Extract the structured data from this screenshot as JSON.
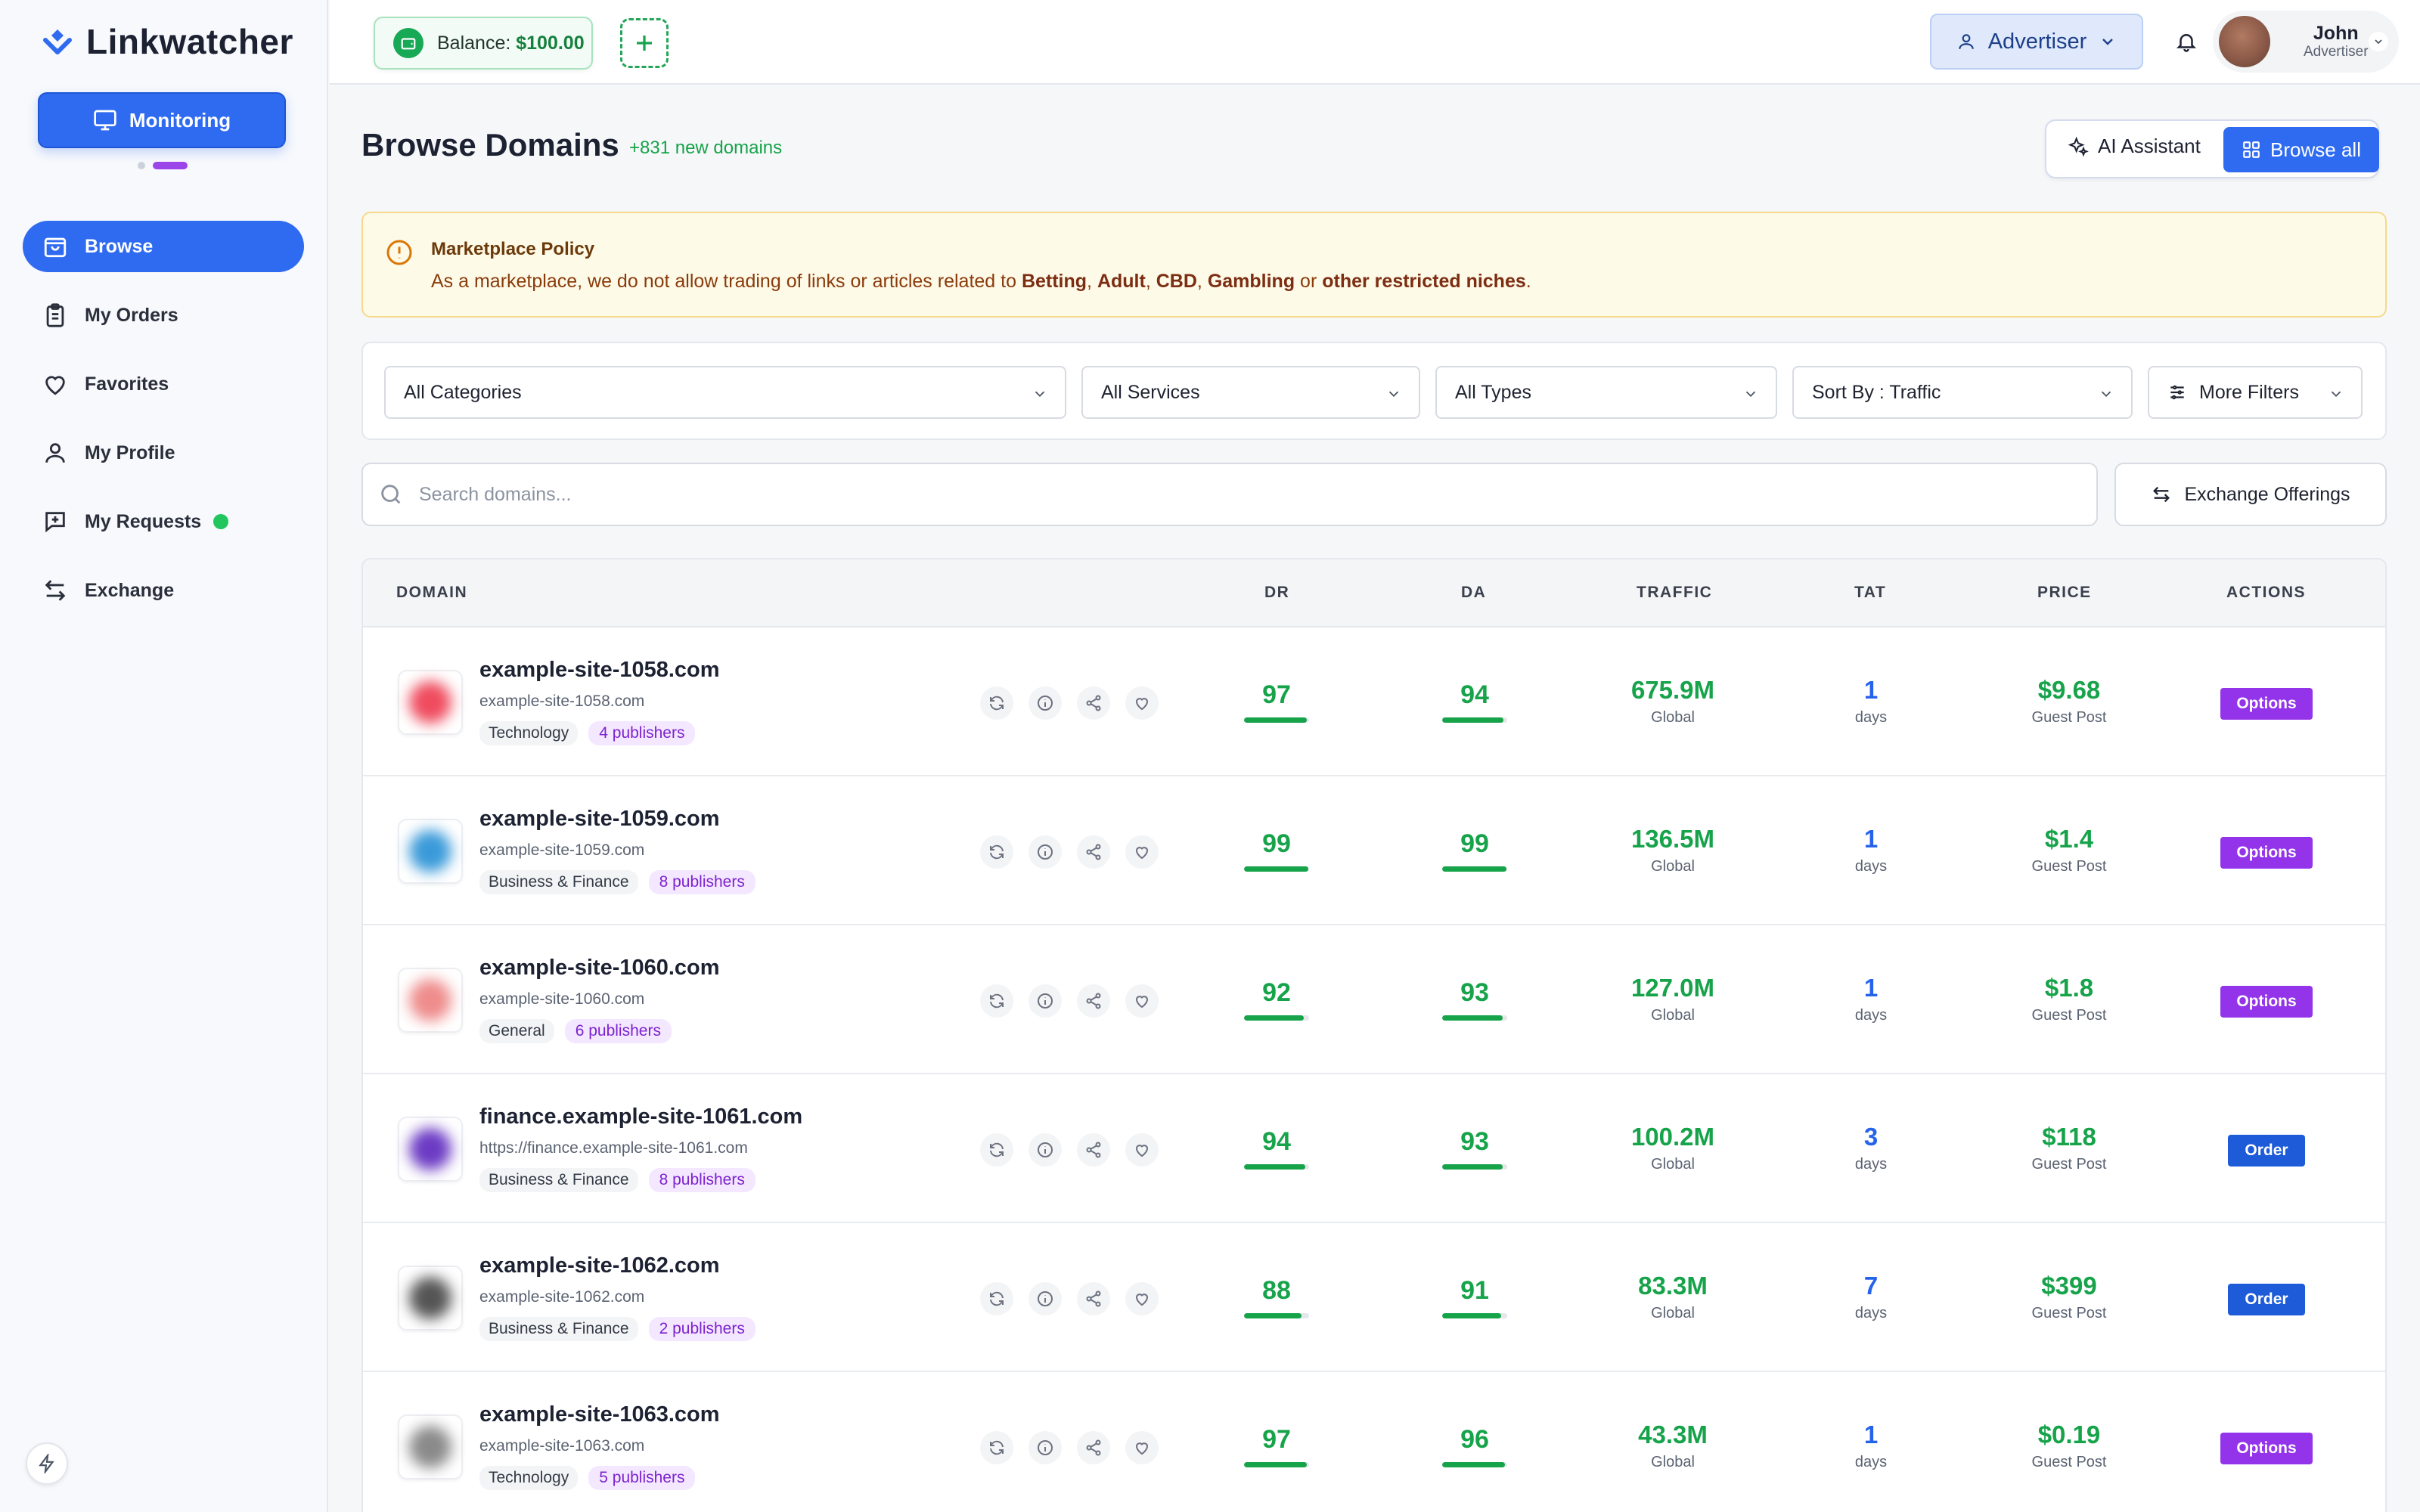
{
  "app": {
    "name": "Linkwatcher",
    "monitor_label": "Monitoring"
  },
  "sidebar": {
    "items": [
      {
        "label": "Browse",
        "icon": "bag-icon",
        "active": true
      },
      {
        "label": "My Orders",
        "icon": "clipboard-icon"
      },
      {
        "label": "Favorites",
        "icon": "heart-icon"
      },
      {
        "label": "My Profile",
        "icon": "user-icon"
      },
      {
        "label": "My Requests",
        "icon": "message-plus-icon",
        "indicator": true
      },
      {
        "label": "Exchange",
        "icon": "arrows-icon"
      }
    ]
  },
  "topbar": {
    "balance_label": "Balance:",
    "balance_value": "$100.00",
    "role": "Advertiser",
    "user_name": "John",
    "user_role": "Advertiser"
  },
  "header": {
    "title": "Browse Domains",
    "new_domains": "+831 new domains",
    "ai_assistant": "AI Assistant",
    "browse_all": "Browse all"
  },
  "policy": {
    "title": "Marketplace Policy",
    "text_pre": "As a marketplace, we do not allow trading of links or articles related to ",
    "betting": "Betting",
    "adult": "Adult",
    "cbd": "CBD",
    "gambling": "Gambling",
    "or": " or ",
    "other": "other restricted niches",
    "end": "."
  },
  "filters": {
    "categories": "All Categories",
    "services": "All Services",
    "types": "All Types",
    "sort": "Sort By : Traffic",
    "more": "More Filters"
  },
  "search": {
    "placeholder": "Search domains...",
    "value": ""
  },
  "exchange_offerings": "Exchange Offerings",
  "table": {
    "columns": {
      "domain": "DOMAIN",
      "dr": "DR",
      "da": "DA",
      "traffic": "TRAFFIC",
      "tat": "TAT",
      "price": "PRICE",
      "actions": "ACTIONS"
    },
    "rows": [
      {
        "name": "example-site-1058.com",
        "url": "example-site-1058.com",
        "category": "Technology",
        "publishers": "4 publishers",
        "dr": "97",
        "da": "94",
        "traffic": "675.9M",
        "region": "Global",
        "tat": "1",
        "tat_unit": "days",
        "price": "$9.68",
        "price_type": "Guest Post",
        "action": "Options",
        "color": "#ef4c5e"
      },
      {
        "name": "example-site-1059.com",
        "url": "example-site-1059.com",
        "category": "Business & Finance",
        "publishers": "8 publishers",
        "dr": "99",
        "da": "99",
        "traffic": "136.5M",
        "region": "Global",
        "tat": "1",
        "tat_unit": "days",
        "price": "$1.4",
        "price_type": "Guest Post",
        "action": "Options",
        "color": "#3a9ad9"
      },
      {
        "name": "example-site-1060.com",
        "url": "example-site-1060.com",
        "category": "General",
        "publishers": "6 publishers",
        "dr": "92",
        "da": "93",
        "traffic": "127.0M",
        "region": "Global",
        "tat": "1",
        "tat_unit": "days",
        "price": "$1.8",
        "price_type": "Guest Post",
        "action": "Options",
        "color": "#ef8c8c"
      },
      {
        "name": "finance.example-site-1061.com",
        "url": "https://finance.example-site-1061.com",
        "category": "Business & Finance",
        "publishers": "8 publishers",
        "dr": "94",
        "da": "93",
        "traffic": "100.2M",
        "region": "Global",
        "tat": "3",
        "tat_unit": "days",
        "price": "$118",
        "price_type": "Guest Post",
        "action": "Order",
        "color": "#6c3bc4"
      },
      {
        "name": "example-site-1062.com",
        "url": "example-site-1062.com",
        "category": "Business & Finance",
        "publishers": "2 publishers",
        "dr": "88",
        "da": "91",
        "traffic": "83.3M",
        "region": "Global",
        "tat": "7",
        "tat_unit": "days",
        "price": "$399",
        "price_type": "Guest Post",
        "action": "Order",
        "color": "#555555"
      },
      {
        "name": "example-site-1063.com",
        "url": "example-site-1063.com",
        "category": "Technology",
        "publishers": "5 publishers",
        "dr": "97",
        "da": "96",
        "traffic": "43.3M",
        "region": "Global",
        "tat": "1",
        "tat_unit": "days",
        "price": "$0.19",
        "price_type": "Guest Post",
        "action": "Options",
        "color": "#8a8a8a"
      }
    ]
  }
}
